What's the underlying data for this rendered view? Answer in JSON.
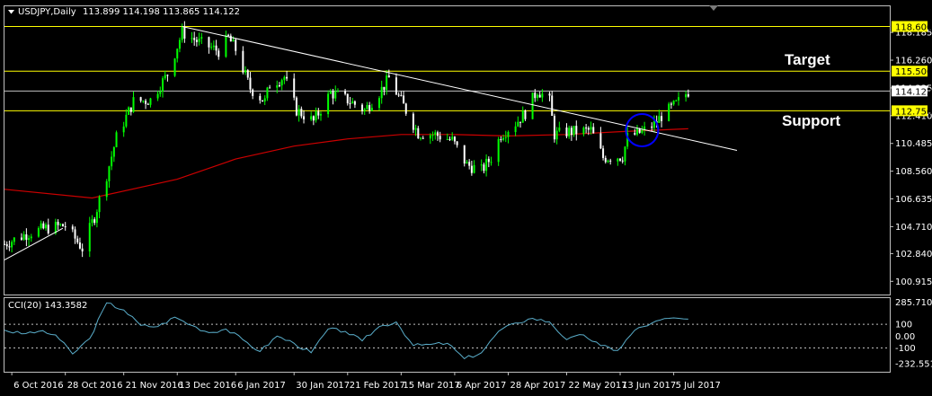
{
  "header": {
    "symbol": "USDJPY,Daily",
    "ohlc": "113.899 114.198 113.865 114.122"
  },
  "annotations": {
    "target": "Target",
    "support": "Support"
  },
  "cci": {
    "label": "CCI(20) 143.3582",
    "line_color": "#5aaecb"
  },
  "colors": {
    "background": "#000000",
    "bull": "#00ff00",
    "bear": "#ffffff",
    "level_line": "#ffff00",
    "trendline": "#ffffff",
    "moving_average": "#cc0000",
    "circle": "#0000ff"
  },
  "chart_data": [
    {
      "type": "candlestick",
      "title": "",
      "ylim": [
        100.0,
        120.0
      ],
      "y_ticks": [
        {
          "v": 118.185,
          "label": "118.185"
        },
        {
          "v": 116.26,
          "label": "116.260"
        },
        {
          "v": 114.335,
          "label": "114.335"
        },
        {
          "v": 112.41,
          "label": "112.410"
        },
        {
          "v": 110.485,
          "label": "110.485"
        },
        {
          "v": 108.56,
          "label": "108.560"
        },
        {
          "v": 106.635,
          "label": "106.635"
        },
        {
          "v": 104.71,
          "label": "104.710"
        },
        {
          "v": 102.84,
          "label": "102.840"
        },
        {
          "v": 100.915,
          "label": "100.915"
        }
      ],
      "horizontal_levels": [
        {
          "v": 118.6,
          "label": "118.600"
        },
        {
          "v": 115.5,
          "label": "115.500"
        },
        {
          "v": 112.75,
          "label": "112.750"
        }
      ],
      "current_price": {
        "v": 114.122,
        "label": "114.122"
      },
      "x_ticks": [
        "6 Oct 2016",
        "28 Oct 2016",
        "21 Nov 2016",
        "13 Dec 2016",
        "6 Jan 2017",
        "30 Jan 2017",
        "21 Feb 2017",
        "15 Mar 2017",
        "6 Apr 2017",
        "28 Apr 2017",
        "22 May 2017",
        "13 Jun 2017",
        "5 Jul 2017"
      ],
      "close_path": [
        {
          "date": "2016-10-03",
          "v": 103.5
        },
        {
          "date": "2016-10-12",
          "v": 104.2
        },
        {
          "date": "2016-10-20",
          "v": 104.6
        },
        {
          "date": "2016-10-28",
          "v": 104.8
        },
        {
          "date": "2016-11-04",
          "v": 103.2
        },
        {
          "date": "2016-11-08",
          "v": 105.0
        },
        {
          "date": "2016-11-09",
          "v": 105.4
        },
        {
          "date": "2016-11-14",
          "v": 108.3
        },
        {
          "date": "2016-11-18",
          "v": 110.9
        },
        {
          "date": "2016-11-25",
          "v": 113.4
        },
        {
          "date": "2016-12-02",
          "v": 113.5
        },
        {
          "date": "2016-12-09",
          "v": 115.3
        },
        {
          "date": "2016-12-15",
          "v": 118.2
        },
        {
          "date": "2016-12-22",
          "v": 117.5
        },
        {
          "date": "2016-12-30",
          "v": 116.9
        },
        {
          "date": "2017-01-03",
          "v": 117.8
        },
        {
          "date": "2017-01-06",
          "v": 117.0
        },
        {
          "date": "2017-01-12",
          "v": 114.3
        },
        {
          "date": "2017-01-18",
          "v": 113.4
        },
        {
          "date": "2017-01-20",
          "v": 114.6
        },
        {
          "date": "2017-01-26",
          "v": 115.1
        },
        {
          "date": "2017-01-31",
          "v": 112.8
        },
        {
          "date": "2017-02-07",
          "v": 112.0
        },
        {
          "date": "2017-02-14",
          "v": 114.0
        },
        {
          "date": "2017-02-21",
          "v": 113.5
        },
        {
          "date": "2017-02-28",
          "v": 112.8
        },
        {
          "date": "2017-03-06",
          "v": 114.0
        },
        {
          "date": "2017-03-10",
          "v": 115.0
        },
        {
          "date": "2017-03-15",
          "v": 113.4
        },
        {
          "date": "2017-03-22",
          "v": 111.2
        },
        {
          "date": "2017-03-29",
          "v": 111.1
        },
        {
          "date": "2017-04-05",
          "v": 110.7
        },
        {
          "date": "2017-04-11",
          "v": 109.0
        },
        {
          "date": "2017-04-17",
          "v": 108.6
        },
        {
          "date": "2017-04-21",
          "v": 109.5
        },
        {
          "date": "2017-04-25",
          "v": 111.1
        },
        {
          "date": "2017-05-01",
          "v": 111.9
        },
        {
          "date": "2017-05-05",
          "v": 112.6
        },
        {
          "date": "2017-05-10",
          "v": 114.2
        },
        {
          "date": "2017-05-15",
          "v": 113.4
        },
        {
          "date": "2017-05-17",
          "v": 111.1
        },
        {
          "date": "2017-05-23",
          "v": 111.3
        },
        {
          "date": "2017-05-26",
          "v": 111.3
        },
        {
          "date": "2017-06-01",
          "v": 111.4
        },
        {
          "date": "2017-06-06",
          "v": 109.5
        },
        {
          "date": "2017-06-14",
          "v": 109.6
        },
        {
          "date": "2017-06-16",
          "v": 110.9
        },
        {
          "date": "2017-06-22",
          "v": 111.3
        },
        {
          "date": "2017-06-27",
          "v": 111.8
        },
        {
          "date": "2017-06-30",
          "v": 112.4
        },
        {
          "date": "2017-07-06",
          "v": 113.2
        },
        {
          "date": "2017-07-11",
          "v": 114.1
        }
      ],
      "moving_average": [
        {
          "date": "2016-10-03",
          "v": 107.3
        },
        {
          "date": "2016-11-08",
          "v": 106.7
        },
        {
          "date": "2016-12-13",
          "v": 108.0
        },
        {
          "date": "2017-01-06",
          "v": 109.4
        },
        {
          "date": "2017-01-30",
          "v": 110.3
        },
        {
          "date": "2017-02-21",
          "v": 110.8
        },
        {
          "date": "2017-03-15",
          "v": 111.1
        },
        {
          "date": "2017-04-06",
          "v": 111.1
        },
        {
          "date": "2017-04-28",
          "v": 111.0
        },
        {
          "date": "2017-05-22",
          "v": 111.1
        },
        {
          "date": "2017-06-13",
          "v": 111.3
        },
        {
          "date": "2017-07-11",
          "v": 111.5
        }
      ],
      "trendlines": [
        {
          "start": {
            "date": "2016-10-03",
            "v": 102.4
          },
          "end": {
            "date": "2016-10-27",
            "v": 104.6
          }
        },
        {
          "start": {
            "date": "2016-12-15",
            "v": 118.6
          },
          "end": {
            "date": "2017-07-31",
            "v": 110.0
          }
        }
      ],
      "marker_circle": {
        "date": "2017-06-22",
        "v": 111.4
      }
    },
    {
      "type": "line",
      "title": "CCI(20) 143.3582",
      "ylim": [
        -300,
        320
      ],
      "y_ticks": [
        {
          "v": 285.7103,
          "label": "285.7103"
        },
        {
          "v": 100,
          "label": "100"
        },
        {
          "v": 0,
          "label": "0.00"
        },
        {
          "v": -100,
          "label": "-100"
        },
        {
          "v": -232.5512,
          "label": "-232.5512"
        }
      ],
      "levels": [
        100,
        -100
      ],
      "series": [
        {
          "points": [
            {
              "date": "2016-10-03",
              "v": 50
            },
            {
              "date": "2016-10-10",
              "v": 20
            },
            {
              "date": "2016-10-17",
              "v": 40
            },
            {
              "date": "2016-10-24",
              "v": 10
            },
            {
              "date": "2016-10-31",
              "v": -150
            },
            {
              "date": "2016-11-07",
              "v": -20
            },
            {
              "date": "2016-11-14",
              "v": 280
            },
            {
              "date": "2016-11-21",
              "v": 220
            },
            {
              "date": "2016-11-28",
              "v": 90
            },
            {
              "date": "2016-12-05",
              "v": 80
            },
            {
              "date": "2016-12-12",
              "v": 160
            },
            {
              "date": "2016-12-19",
              "v": 90
            },
            {
              "date": "2016-12-26",
              "v": 30
            },
            {
              "date": "2017-01-02",
              "v": 60
            },
            {
              "date": "2017-01-09",
              "v": -30
            },
            {
              "date": "2017-01-16",
              "v": -130
            },
            {
              "date": "2017-01-23",
              "v": 0
            },
            {
              "date": "2017-01-30",
              "v": -60
            },
            {
              "date": "2017-02-06",
              "v": -140
            },
            {
              "date": "2017-02-13",
              "v": 60
            },
            {
              "date": "2017-02-20",
              "v": 40
            },
            {
              "date": "2017-02-27",
              "v": -40
            },
            {
              "date": "2017-03-06",
              "v": 80
            },
            {
              "date": "2017-03-13",
              "v": 120
            },
            {
              "date": "2017-03-20",
              "v": -80
            },
            {
              "date": "2017-03-27",
              "v": -70
            },
            {
              "date": "2017-04-03",
              "v": -60
            },
            {
              "date": "2017-04-10",
              "v": -190
            },
            {
              "date": "2017-04-17",
              "v": -140
            },
            {
              "date": "2017-04-24",
              "v": 40
            },
            {
              "date": "2017-05-01",
              "v": 110
            },
            {
              "date": "2017-05-08",
              "v": 150
            },
            {
              "date": "2017-05-15",
              "v": 120
            },
            {
              "date": "2017-05-22",
              "v": -30
            },
            {
              "date": "2017-05-29",
              "v": 10
            },
            {
              "date": "2017-06-05",
              "v": -80
            },
            {
              "date": "2017-06-12",
              "v": -120
            },
            {
              "date": "2017-06-19",
              "v": 50
            },
            {
              "date": "2017-06-26",
              "v": 110
            },
            {
              "date": "2017-07-03",
              "v": 150
            },
            {
              "date": "2017-07-11",
              "v": 143
            }
          ]
        }
      ],
      "xlabel": "",
      "ylabel": ""
    }
  ]
}
